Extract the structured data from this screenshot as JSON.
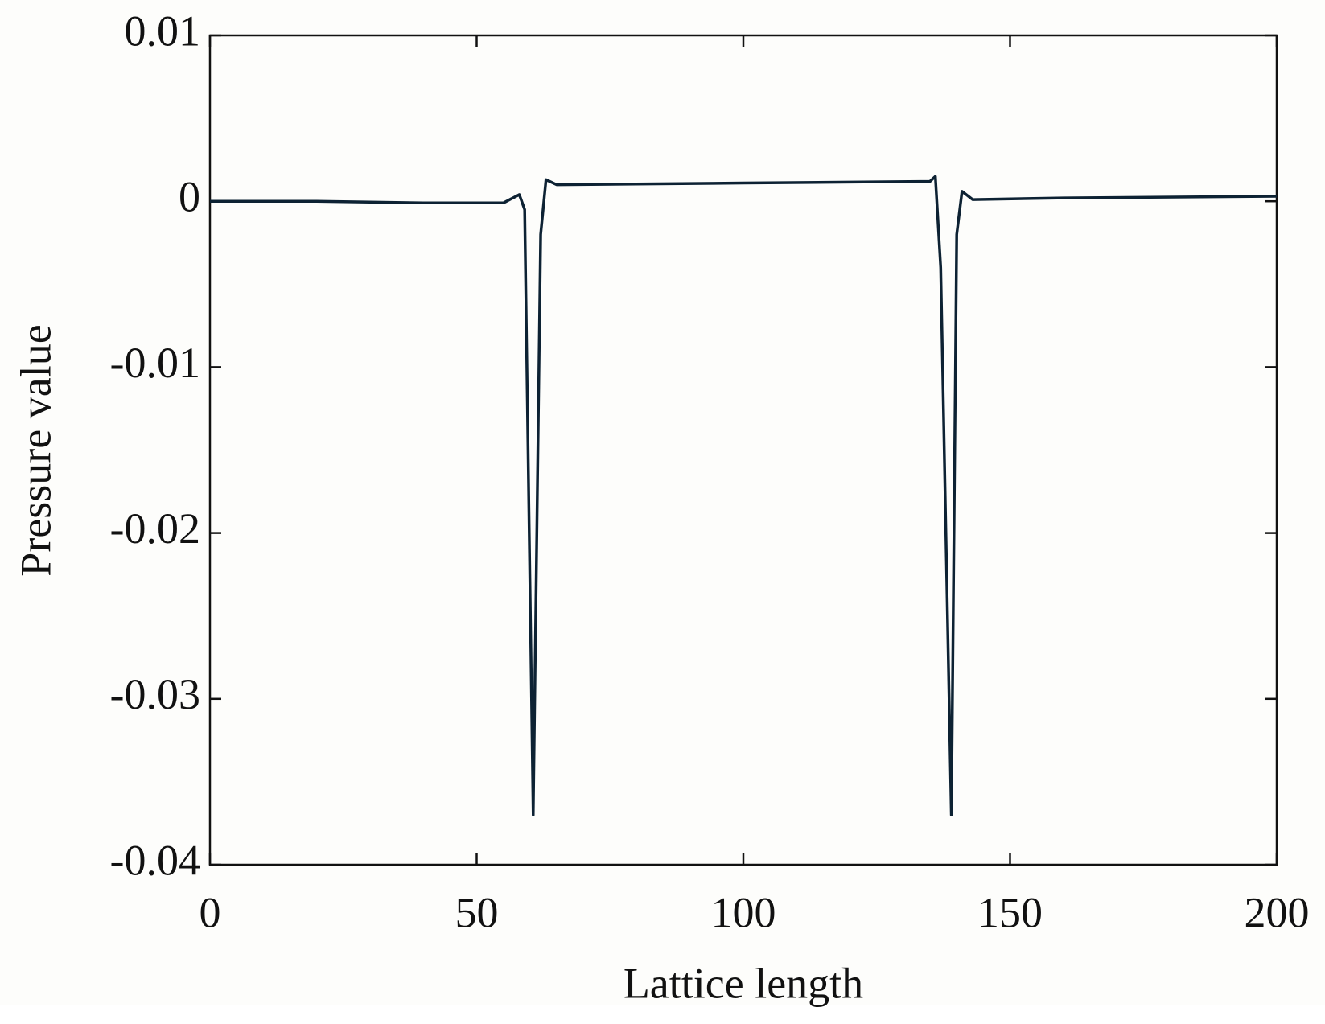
{
  "chart_data": {
    "type": "line",
    "xlabel": "Lattice length",
    "ylabel": "Pressure value",
    "x": [
      0,
      20,
      40,
      55,
      58,
      59,
      60.6,
      62,
      63,
      65,
      100,
      135,
      136,
      137,
      139,
      140,
      141,
      143,
      160,
      200
    ],
    "series": [
      {
        "color": "#0d2233",
        "values": [
          0,
          0,
          -0.0001,
          -0.0001,
          0.0004,
          -0.0005,
          -0.037,
          -0.002,
          0.0013,
          0.001,
          0.0011,
          0.0012,
          0.0015,
          -0.004,
          -0.037,
          -0.002,
          0.0006,
          0.0001,
          0.0002,
          0.0003
        ]
      }
    ],
    "xlim": [
      0,
      200
    ],
    "xticks": [
      0,
      50,
      100,
      150,
      200
    ],
    "ylim": [
      -0.04,
      0.01
    ],
    "yticks": [
      -0.04,
      -0.03,
      -0.02,
      -0.01,
      0,
      0.01
    ]
  }
}
